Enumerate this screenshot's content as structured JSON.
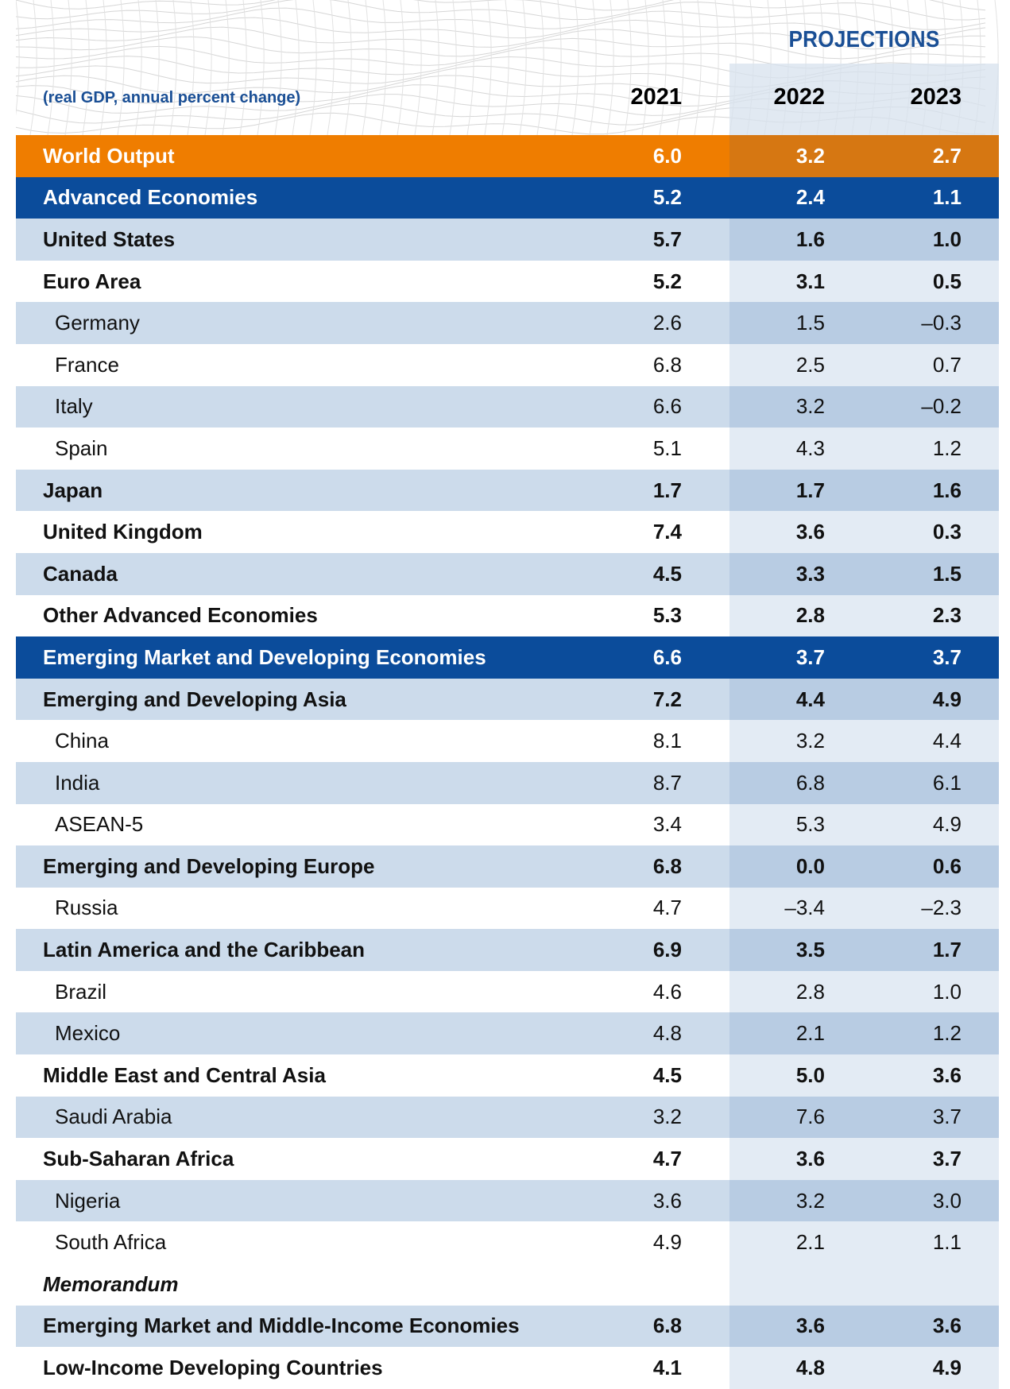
{
  "header": {
    "projections_label": "PROJECTIONS",
    "subtitle": "(real GDP, annual percent change)",
    "years": [
      "2021",
      "2022",
      "2023"
    ]
  },
  "colors": {
    "orange": "#ef7d00",
    "blue": "#0b4c9b",
    "light_row": "#ccdbeb",
    "projection_shade": "#b8cce3",
    "title_blue": "#1a4f95"
  },
  "rows": [
    {
      "label": "World Output",
      "style": "orange",
      "values": [
        "6.0",
        "3.2",
        "2.7"
      ]
    },
    {
      "label": "Advanced Economies",
      "style": "blue",
      "values": [
        "5.2",
        "2.4",
        "1.1"
      ]
    },
    {
      "label": "United States",
      "style": "light",
      "values": [
        "5.7",
        "1.6",
        "1.0"
      ]
    },
    {
      "label": "Euro Area",
      "style": "white",
      "values": [
        "5.2",
        "3.1",
        "0.5"
      ]
    },
    {
      "label": "Germany",
      "style": "light",
      "indent": true,
      "values": [
        "2.6",
        "1.5",
        "–0.3"
      ]
    },
    {
      "label": "France",
      "style": "white",
      "indent": true,
      "values": [
        "6.8",
        "2.5",
        "0.7"
      ]
    },
    {
      "label": "Italy",
      "style": "light",
      "indent": true,
      "values": [
        "6.6",
        "3.2",
        "–0.2"
      ]
    },
    {
      "label": "Spain",
      "style": "white",
      "indent": true,
      "values": [
        "5.1",
        "4.3",
        "1.2"
      ]
    },
    {
      "label": "Japan",
      "style": "light",
      "values": [
        "1.7",
        "1.7",
        "1.6"
      ]
    },
    {
      "label": "United Kingdom",
      "style": "white",
      "values": [
        "7.4",
        "3.6",
        "0.3"
      ]
    },
    {
      "label": "Canada",
      "style": "light",
      "values": [
        "4.5",
        "3.3",
        "1.5"
      ]
    },
    {
      "label": "Other Advanced Economies",
      "style": "white",
      "values": [
        "5.3",
        "2.8",
        "2.3"
      ]
    },
    {
      "label": "Emerging Market and Developing Economies",
      "style": "blue",
      "values": [
        "6.6",
        "3.7",
        "3.7"
      ]
    },
    {
      "label": "Emerging and Developing Asia",
      "style": "light",
      "values": [
        "7.2",
        "4.4",
        "4.9"
      ]
    },
    {
      "label": "China",
      "style": "white",
      "indent": true,
      "values": [
        "8.1",
        "3.2",
        "4.4"
      ]
    },
    {
      "label": "India",
      "style": "light",
      "indent": true,
      "values": [
        "8.7",
        "6.8",
        "6.1"
      ]
    },
    {
      "label": "ASEAN-5",
      "style": "white",
      "indent": true,
      "values": [
        "3.4",
        "5.3",
        "4.9"
      ]
    },
    {
      "label": "Emerging and Developing Europe",
      "style": "light",
      "values": [
        "6.8",
        "0.0",
        "0.6"
      ]
    },
    {
      "label": "Russia",
      "style": "white",
      "indent": true,
      "values": [
        "4.7",
        "–3.4",
        "–2.3"
      ]
    },
    {
      "label": "Latin America and the Caribbean",
      "style": "light",
      "values": [
        "6.9",
        "3.5",
        "1.7"
      ]
    },
    {
      "label": "Brazil",
      "style": "white",
      "indent": true,
      "values": [
        "4.6",
        "2.8",
        "1.0"
      ]
    },
    {
      "label": "Mexico",
      "style": "light",
      "indent": true,
      "values": [
        "4.8",
        "2.1",
        "1.2"
      ]
    },
    {
      "label": "Middle East and Central Asia",
      "style": "white",
      "values": [
        "4.5",
        "5.0",
        "3.6"
      ]
    },
    {
      "label": "Saudi Arabia",
      "style": "light",
      "indent": true,
      "values": [
        "3.2",
        "7.6",
        "3.7"
      ]
    },
    {
      "label": "Sub-Saharan Africa",
      "style": "white",
      "values": [
        "4.7",
        "3.6",
        "3.7"
      ]
    },
    {
      "label": "Nigeria",
      "style": "light",
      "indent": true,
      "values": [
        "3.6",
        "3.2",
        "3.0"
      ]
    },
    {
      "label": "South Africa",
      "style": "white",
      "indent": true,
      "values": [
        "4.9",
        "2.1",
        "1.1"
      ]
    },
    {
      "label": "Memorandum",
      "style": "white memo",
      "values": [
        "",
        "",
        ""
      ]
    },
    {
      "label": "Emerging Market and Middle-Income Economies",
      "style": "light",
      "values": [
        "6.8",
        "3.6",
        "3.6"
      ]
    },
    {
      "label": "Low-Income Developing Countries",
      "style": "white",
      "values": [
        "4.1",
        "4.8",
        "4.9"
      ]
    }
  ]
}
